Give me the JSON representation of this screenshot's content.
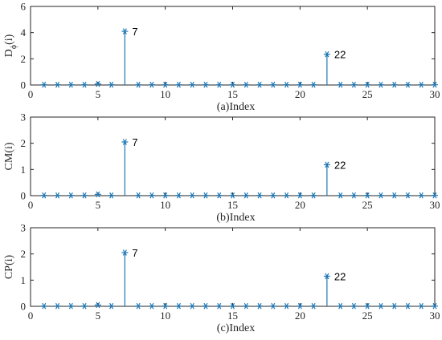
{
  "chart_data": [
    {
      "type": "stem",
      "ylabel_main": "D",
      "ylabel_sub": "ϕ",
      "ylabel_tail": "(i)",
      "xlabel": "(a)Index",
      "xlim": [
        0,
        30
      ],
      "ylim": [
        0,
        6
      ],
      "xticks": [
        "0",
        "5",
        "10",
        "15",
        "20",
        "25",
        "30"
      ],
      "yticks": [
        "0",
        "2",
        "4",
        "6"
      ],
      "ytick_values": [
        0,
        2,
        4,
        6
      ],
      "x": [
        1,
        2,
        3,
        4,
        5,
        6,
        7,
        8,
        9,
        10,
        11,
        12,
        13,
        14,
        15,
        16,
        17,
        18,
        19,
        20,
        21,
        22,
        23,
        24,
        25,
        26,
        27,
        28,
        29,
        30
      ],
      "values": [
        0.02,
        0.02,
        0.02,
        0.02,
        0.08,
        0.02,
        4.1,
        0.02,
        0.02,
        0.02,
        0.02,
        0.02,
        0.02,
        0.02,
        0.02,
        0.02,
        0.02,
        0.02,
        0.02,
        0.02,
        0.02,
        2.35,
        0.02,
        0.02,
        0.02,
        0.02,
        0.02,
        0.02,
        0.02,
        0.02
      ],
      "annotations": [
        {
          "x": 7,
          "text": "7"
        },
        {
          "x": 22,
          "text": "22"
        }
      ],
      "color": "#1f77b4"
    },
    {
      "type": "stem",
      "ylabel_main": "CM(i)",
      "ylabel_sub": "",
      "ylabel_tail": "",
      "xlabel": "(b)Index",
      "xlim": [
        0,
        30
      ],
      "ylim": [
        0,
        3
      ],
      "xticks": [
        "0",
        "5",
        "10",
        "15",
        "20",
        "25",
        "30"
      ],
      "yticks": [
        "0",
        "1",
        "2",
        "3"
      ],
      "ytick_values": [
        0,
        1,
        2,
        3
      ],
      "x": [
        1,
        2,
        3,
        4,
        5,
        6,
        7,
        8,
        9,
        10,
        11,
        12,
        13,
        14,
        15,
        16,
        17,
        18,
        19,
        20,
        21,
        22,
        23,
        24,
        25,
        26,
        27,
        28,
        29,
        30
      ],
      "values": [
        0.01,
        0.01,
        0.01,
        0.01,
        0.05,
        0.01,
        2.05,
        0.01,
        0.01,
        0.01,
        0.01,
        0.01,
        0.01,
        0.01,
        0.01,
        0.01,
        0.01,
        0.01,
        0.01,
        0.01,
        0.01,
        1.18,
        0.01,
        0.01,
        0.01,
        0.01,
        0.01,
        0.01,
        0.01,
        0.01
      ],
      "annotations": [
        {
          "x": 7,
          "text": "7"
        },
        {
          "x": 22,
          "text": "22"
        }
      ],
      "color": "#1f77b4"
    },
    {
      "type": "stem",
      "ylabel_main": "CP(i)",
      "ylabel_sub": "",
      "ylabel_tail": "",
      "xlabel": "(c)Index",
      "xlim": [
        0,
        30
      ],
      "ylim": [
        0,
        3
      ],
      "xticks": [
        "0",
        "5",
        "10",
        "15",
        "20",
        "25",
        "30"
      ],
      "yticks": [
        "0",
        "1",
        "2",
        "3"
      ],
      "ytick_values": [
        0,
        1,
        2,
        3
      ],
      "x": [
        1,
        2,
        3,
        4,
        5,
        6,
        7,
        8,
        9,
        10,
        11,
        12,
        13,
        14,
        15,
        16,
        17,
        18,
        19,
        20,
        21,
        22,
        23,
        24,
        25,
        26,
        27,
        28,
        29,
        30
      ],
      "values": [
        0.01,
        0.01,
        0.01,
        0.01,
        0.05,
        0.01,
        2.05,
        0.01,
        0.01,
        0.01,
        0.01,
        0.01,
        0.01,
        0.01,
        0.01,
        0.01,
        0.01,
        0.01,
        0.01,
        0.01,
        0.01,
        1.15,
        0.01,
        0.01,
        0.01,
        0.01,
        0.01,
        0.01,
        0.01,
        0.01
      ],
      "annotations": [
        {
          "x": 7,
          "text": "7"
        },
        {
          "x": 22,
          "text": "22"
        }
      ],
      "color": "#1f77b4"
    }
  ]
}
